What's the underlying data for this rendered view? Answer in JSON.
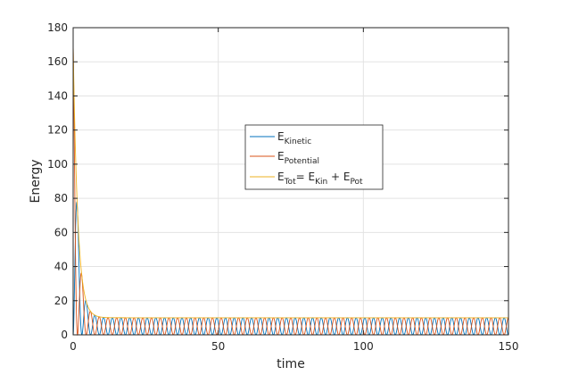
{
  "chart_data": {
    "type": "line",
    "title": "",
    "xlabel": "time",
    "ylabel": "Energy",
    "xlim": [
      0,
      150
    ],
    "ylim": [
      0,
      180
    ],
    "xticks": [
      0,
      50,
      100,
      150
    ],
    "yticks": [
      0,
      20,
      40,
      60,
      80,
      100,
      120,
      140,
      160,
      180
    ],
    "grid": true,
    "legend_position": "center",
    "model": {
      "initial_total_energy": 170,
      "steady_total_energy": 10,
      "decay_time": 1.6,
      "oscillation_period": 3.0
    },
    "series": [
      {
        "name": "E_Kinetic",
        "legend": {
          "main": "E",
          "sub": "Kinetic"
        },
        "color": "#0072BD"
      },
      {
        "name": "E_Potential",
        "legend": {
          "main": "E",
          "sub": "Potential"
        },
        "color": "#D95319"
      },
      {
        "name": "E_Tot = E_Kin + E_Pot",
        "legend": {
          "main": "E",
          "sub": "Tot",
          "eq": "= E",
          "sub2": "Kin",
          "plus": " + E",
          "sub3": "Pot"
        },
        "color": "#EDB120"
      }
    ]
  }
}
